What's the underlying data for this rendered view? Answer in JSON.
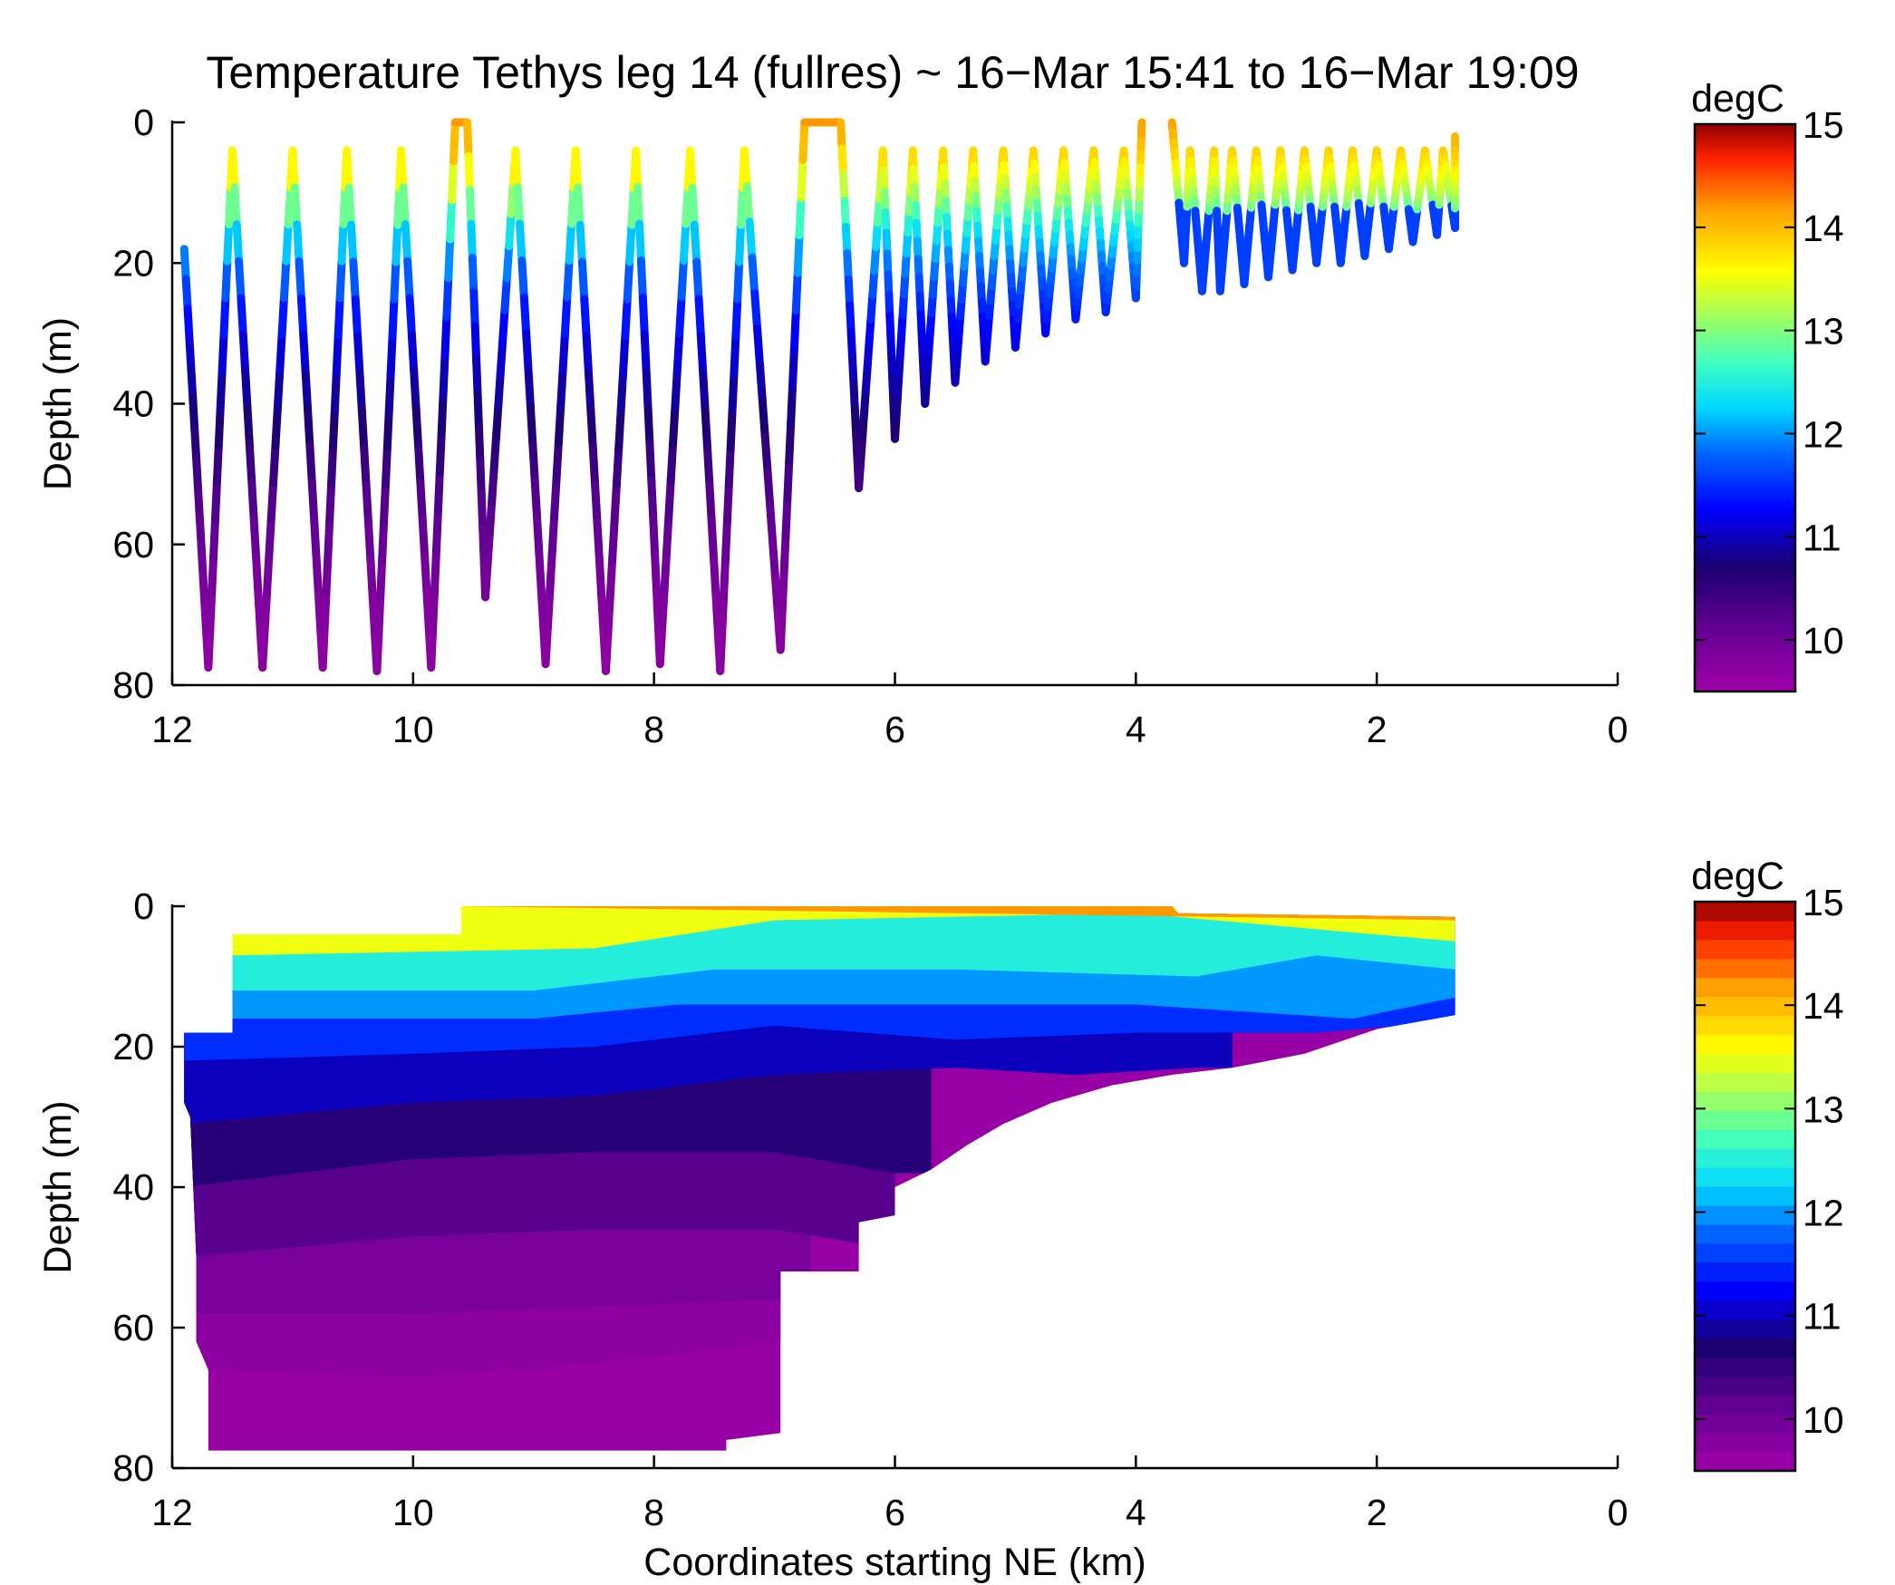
{
  "figure": {
    "title": "Temperature Tethys leg 14 (fullres) ~ 16−Mar 15:41 to 16−Mar 19:09"
  },
  "chart_data": [
    {
      "type": "scatter",
      "panel": "top",
      "description_of_encoding": "yo-yo AUV profile track colored by temperature",
      "xlabel": "",
      "ylabel": "Depth (m)",
      "xlim": [
        12,
        0
      ],
      "ylim": [
        80,
        0
      ],
      "x_ticks": [
        "12",
        "10",
        "8",
        "6",
        "4",
        "2",
        "0"
      ],
      "y_ticks": [
        "0",
        "20",
        "40",
        "60",
        "80"
      ],
      "colorbar": {
        "label": "degC",
        "range": [
          9.5,
          15
        ],
        "ticks": [
          "15",
          "14",
          "13",
          "12",
          "11",
          "10"
        ],
        "continuous": true
      },
      "series": [
        {
          "points": [
            [
              11.9,
              18
            ],
            [
              11.7,
              77.5
            ],
            [
              11.5,
              4
            ],
            [
              11.25,
              77.5
            ],
            [
              11.0,
              4
            ],
            [
              10.75,
              77.5
            ],
            [
              10.55,
              4
            ],
            [
              10.3,
              78
            ],
            [
              10.1,
              4
            ],
            [
              9.85,
              77.5
            ],
            [
              9.65,
              0
            ],
            [
              9.55,
              0
            ],
            [
              9.4,
              67.5
            ],
            [
              9.15,
              4
            ],
            [
              8.9,
              77
            ],
            [
              8.65,
              4
            ],
            [
              8.4,
              78
            ],
            [
              8.15,
              4
            ],
            [
              7.95,
              77
            ],
            [
              7.7,
              4
            ],
            [
              7.45,
              78
            ],
            [
              7.25,
              4
            ],
            [
              6.95,
              75
            ],
            [
              6.75,
              0
            ],
            [
              6.45,
              0
            ],
            [
              6.3,
              52
            ],
            [
              6.1,
              4
            ],
            [
              6.0,
              45
            ],
            [
              5.85,
              4
            ],
            [
              5.75,
              40
            ],
            [
              5.6,
              4
            ],
            [
              5.5,
              37
            ],
            [
              5.35,
              4
            ],
            [
              5.25,
              34
            ],
            [
              5.1,
              4
            ],
            [
              5.0,
              32
            ],
            [
              4.85,
              4
            ],
            [
              4.75,
              30
            ],
            [
              4.6,
              4
            ],
            [
              4.5,
              28
            ],
            [
              4.35,
              4
            ],
            [
              4.25,
              27
            ],
            [
              4.1,
              4
            ],
            [
              4.0,
              25
            ],
            [
              3.95,
              0
            ]
          ],
          "temperature_note": "surface ~13.5-14.5 degC, 20 m ~12 degC, 40 m ~11 degC, 75 m ~9.8 degC"
        },
        {
          "points": [
            [
              3.7,
              0
            ],
            [
              3.6,
              20
            ],
            [
              3.55,
              4
            ],
            [
              3.45,
              24
            ],
            [
              3.35,
              4
            ],
            [
              3.3,
              24
            ],
            [
              3.2,
              4
            ],
            [
              3.1,
              23
            ],
            [
              3.0,
              4
            ],
            [
              2.9,
              22
            ],
            [
              2.8,
              4
            ],
            [
              2.7,
              21
            ],
            [
              2.6,
              4
            ],
            [
              2.5,
              20
            ],
            [
              2.4,
              4
            ],
            [
              2.3,
              20
            ],
            [
              2.2,
              4
            ],
            [
              2.1,
              19
            ],
            [
              2.0,
              4
            ],
            [
              1.9,
              18
            ],
            [
              1.8,
              4
            ],
            [
              1.7,
              17
            ],
            [
              1.6,
              4
            ],
            [
              1.5,
              16
            ],
            [
              1.45,
              4
            ],
            [
              1.35,
              15
            ],
            [
              1.35,
              2
            ]
          ],
          "temperature_note": "surface ~14 degC, 15-20 m ~11.8 degC"
        }
      ]
    },
    {
      "type": "heatmap",
      "panel": "bottom",
      "description_of_encoding": "filled contour section of temperature",
      "xlabel": "Coordinates starting NE (km)",
      "ylabel": "Depth (m)",
      "xlim": [
        12,
        0
      ],
      "ylim": [
        80,
        0
      ],
      "x_ticks": [
        "12",
        "10",
        "8",
        "6",
        "4",
        "2",
        "0"
      ],
      "y_ticks": [
        "0",
        "20",
        "40",
        "60",
        "80"
      ],
      "colorbar": {
        "label": "degC",
        "range": [
          9.5,
          15
        ],
        "ticks": [
          "15",
          "14",
          "13",
          "12",
          "11",
          "10"
        ],
        "continuous": false,
        "levels": 30
      },
      "layers": [
        {
          "temp": 14.2,
          "top": [
            [
              11.5,
              4
            ],
            [
              9.6,
              4
            ],
            [
              9.6,
              0
            ],
            [
              1.35,
              2
            ]
          ]
        },
        {
          "temp": 13.5,
          "top": [
            [
              11.5,
              7
            ],
            [
              8.5,
              6
            ],
            [
              7.0,
              2
            ],
            [
              4.0,
              1
            ],
            [
              1.35,
              5
            ]
          ]
        },
        {
          "temp": 12.5,
          "top": [
            [
              11.5,
              12
            ],
            [
              9.0,
              12
            ],
            [
              7.5,
              9
            ],
            [
              5.5,
              9
            ],
            [
              3.5,
              10
            ],
            [
              2.5,
              7
            ],
            [
              1.35,
              9
            ]
          ]
        },
        {
          "temp": 12.0,
          "top": [
            [
              11.9,
              18
            ],
            [
              11.5,
              16
            ],
            [
              9.0,
              16
            ],
            [
              7.8,
              14
            ],
            [
              6.0,
              14
            ],
            [
              4.0,
              14
            ],
            [
              2.2,
              16
            ],
            [
              1.35,
              13
            ]
          ]
        },
        {
          "temp": 11.5,
          "top": [
            [
              11.9,
              22
            ],
            [
              10.0,
              21
            ],
            [
              8.5,
              20
            ],
            [
              7.0,
              17
            ],
            [
              5.5,
              19
            ],
            [
              4.0,
              18
            ],
            [
              2.5,
              18
            ],
            [
              1.8,
              17
            ],
            [
              1.35,
              16
            ]
          ]
        },
        {
          "temp": 11.0,
          "top": [
            [
              11.9,
              31
            ],
            [
              10.0,
              28
            ],
            [
              8.5,
              27
            ],
            [
              7.0,
              24
            ],
            [
              5.5,
              23
            ],
            [
              4.5,
              24
            ],
            [
              3.5,
              23
            ]
          ]
        },
        {
          "temp": 10.6,
          "top": [
            [
              11.9,
              40
            ],
            [
              10.0,
              36
            ],
            [
              8.5,
              35
            ],
            [
              7.0,
              35
            ],
            [
              6.0,
              38
            ]
          ]
        },
        {
          "temp": 10.2,
          "top": [
            [
              11.9,
              50
            ],
            [
              10.0,
              47
            ],
            [
              8.5,
              46
            ],
            [
              7.0,
              46
            ],
            [
              6.3,
              48
            ]
          ]
        },
        {
          "temp": 9.9,
          "top": [
            [
              11.8,
              58
            ],
            [
              10.0,
              58
            ],
            [
              8.5,
              57
            ],
            [
              7.0,
              56
            ]
          ]
        },
        {
          "temp": 9.7,
          "top": [
            [
              11.7,
              66
            ],
            [
              10.0,
              67
            ],
            [
              8.5,
              65
            ],
            [
              7.0,
              62
            ]
          ]
        }
      ]
    }
  ]
}
